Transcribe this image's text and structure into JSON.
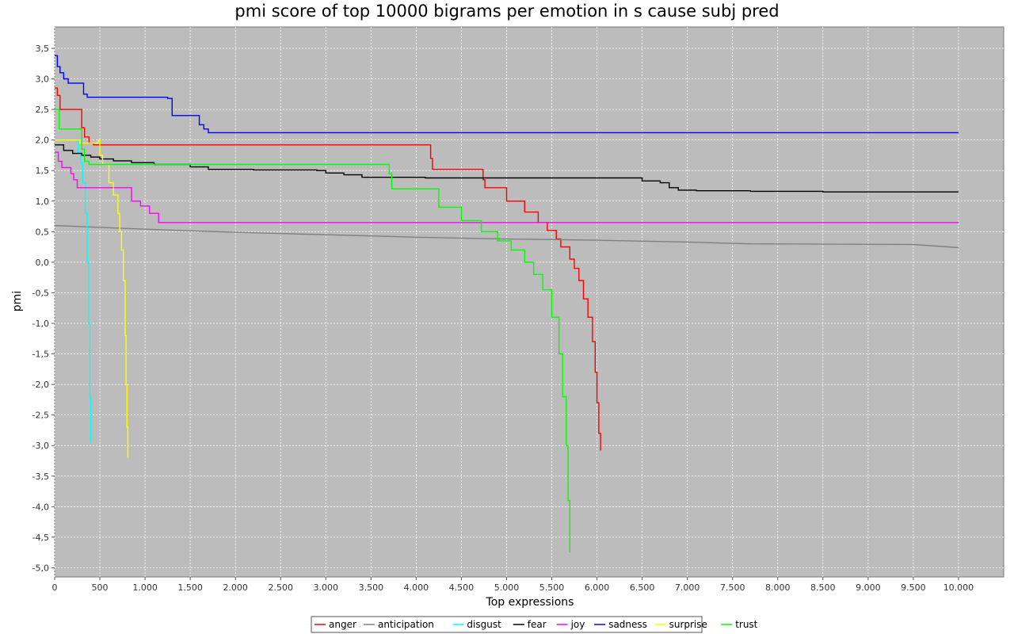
{
  "chart_data": {
    "type": "line",
    "title": "pmi score of top 10000 bigrams per emotion in s cause subj pred",
    "xlabel": "Top expressions",
    "ylabel": "pmi",
    "xlim": [
      0,
      10500
    ],
    "ylim": [
      -5.15,
      3.85
    ],
    "x_ticks": [
      0,
      500,
      1000,
      1500,
      2000,
      2500,
      3000,
      3500,
      4000,
      4500,
      5000,
      5500,
      6000,
      6500,
      7000,
      7500,
      8000,
      8500,
      9000,
      9500,
      10000
    ],
    "x_tick_labels": [
      "0",
      "500",
      "1.000",
      "1.500",
      "2.000",
      "2.500",
      "3.000",
      "3.500",
      "4.000",
      "4.500",
      "5.000",
      "5.500",
      "6.000",
      "6.500",
      "7.000",
      "7.500",
      "8.000",
      "8.500",
      "9.000",
      "9.500",
      "10.000"
    ],
    "y_ticks": [
      3.5,
      3.0,
      2.5,
      2.0,
      1.5,
      1.0,
      0.5,
      0.0,
      -0.5,
      -1.0,
      -1.5,
      -2.0,
      -2.5,
      -3.0,
      -3.5,
      -4.0,
      -4.5,
      -5.0
    ],
    "y_tick_labels": [
      "3,5",
      "3,0",
      "2,5",
      "2,0",
      "1,5",
      "1,0",
      "0,5",
      "0,0",
      "-0,5",
      "-1,0",
      "-1,5",
      "-2,0",
      "-2,5",
      "-3,0",
      "-3,5",
      "-4,0",
      "-4,5",
      "-5,0"
    ],
    "grid": true,
    "legend_position": "bottom-center",
    "series": [
      {
        "name": "anger",
        "color": "#ff0000",
        "step": true,
        "x": [
          0,
          30,
          60,
          300,
          330,
          380,
          430,
          4150,
          4160,
          4180,
          4720,
          4740,
          4760,
          5000,
          5200,
          5350,
          5450,
          5550,
          5600,
          5700,
          5750,
          5800,
          5850,
          5900,
          5950,
          5980,
          6000,
          6020,
          6040
        ],
        "y": [
          2.85,
          2.73,
          2.5,
          2.2,
          2.05,
          1.95,
          1.92,
          1.92,
          1.7,
          1.52,
          1.52,
          1.35,
          1.22,
          1.0,
          0.82,
          0.65,
          0.52,
          0.38,
          0.25,
          0.05,
          -0.1,
          -0.3,
          -0.6,
          -0.9,
          -1.3,
          -1.8,
          -2.3,
          -2.8,
          -3.08
        ]
      },
      {
        "name": "anticipation",
        "color": "#808080",
        "step": false,
        "x": [
          0,
          1000,
          2000,
          3000,
          4000,
          5000,
          6000,
          7000,
          7700,
          9500,
          10000
        ],
        "y": [
          0.6,
          0.54,
          0.49,
          0.45,
          0.41,
          0.38,
          0.36,
          0.33,
          0.3,
          0.29,
          0.24
        ]
      },
      {
        "name": "disgust",
        "color": "#00ffff",
        "step": true,
        "x": [
          0,
          260,
          290,
          310,
          340,
          360,
          375,
          390,
          400
        ],
        "y": [
          2.0,
          1.8,
          1.62,
          1.3,
          0.8,
          0.0,
          -1.0,
          -2.2,
          -2.95
        ]
      },
      {
        "name": "fear",
        "color": "#000000",
        "step": true,
        "x": [
          0,
          100,
          200,
          300,
          400,
          500,
          650,
          850,
          1100,
          1500,
          1700,
          2200,
          2900,
          3000,
          3200,
          3400,
          4100,
          5600,
          6200,
          6500,
          6700,
          6800,
          6900,
          7100,
          7700,
          8500,
          10000
        ],
        "y": [
          1.92,
          1.83,
          1.78,
          1.75,
          1.72,
          1.69,
          1.66,
          1.63,
          1.6,
          1.56,
          1.52,
          1.51,
          1.5,
          1.46,
          1.43,
          1.39,
          1.38,
          1.38,
          1.38,
          1.33,
          1.3,
          1.22,
          1.18,
          1.17,
          1.16,
          1.15,
          1.15
        ]
      },
      {
        "name": "joy",
        "color": "#ff00ff",
        "step": true,
        "x": [
          0,
          40,
          80,
          180,
          210,
          250,
          600,
          850,
          950,
          1050,
          1150,
          10000
        ],
        "y": [
          1.8,
          1.65,
          1.55,
          1.45,
          1.35,
          1.22,
          1.22,
          1.0,
          0.92,
          0.8,
          0.65,
          0.65
        ]
      },
      {
        "name": "sadness",
        "color": "#0000ff",
        "step": true,
        "x": [
          0,
          30,
          60,
          100,
          150,
          320,
          360,
          1250,
          1300,
          1500,
          1600,
          1650,
          1700,
          10000
        ],
        "y": [
          3.38,
          3.2,
          3.1,
          3.0,
          2.93,
          2.75,
          2.7,
          2.68,
          2.4,
          2.4,
          2.25,
          2.18,
          2.12,
          2.12
        ]
      },
      {
        "name": "surprise",
        "color": "#ffff00",
        "step": true,
        "x": [
          0,
          280,
          480,
          500,
          530,
          600,
          650,
          700,
          720,
          740,
          760,
          780,
          790,
          800,
          810
        ],
        "y": [
          2.0,
          1.95,
          2.0,
          1.75,
          1.6,
          1.3,
          1.1,
          0.8,
          0.5,
          0.2,
          -0.3,
          -1.2,
          -2.0,
          -2.7,
          -3.2
        ]
      },
      {
        "name": "trust",
        "color": "#00ff00",
        "step": true,
        "x": [
          0,
          50,
          300,
          330,
          380,
          3650,
          3700,
          3730,
          4250,
          4500,
          4720,
          4900,
          5050,
          5200,
          5300,
          5400,
          5500,
          5580,
          5620,
          5660,
          5680,
          5700
        ],
        "y": [
          2.5,
          2.18,
          1.85,
          1.65,
          1.6,
          1.6,
          1.45,
          1.2,
          0.9,
          0.68,
          0.5,
          0.35,
          0.2,
          0.0,
          -0.2,
          -0.45,
          -0.9,
          -1.5,
          -2.2,
          -3.0,
          -3.9,
          -4.75
        ]
      }
    ]
  }
}
